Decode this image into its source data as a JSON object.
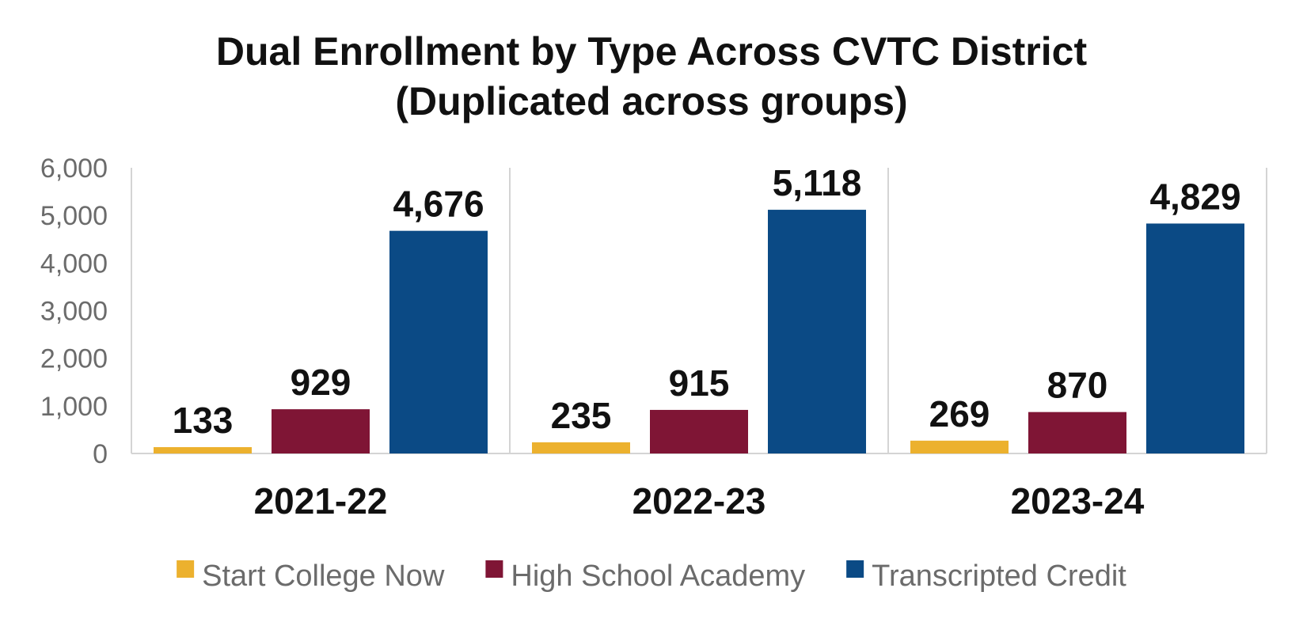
{
  "chart_data": {
    "type": "bar",
    "title_lines": [
      "Dual Enrollment by Type Across CVTC District",
      "(Duplicated across groups)"
    ],
    "categories": [
      "2021-22",
      "2022-23",
      "2023-24"
    ],
    "series": [
      {
        "name": "Start College Now",
        "color": "#ecb12e",
        "values": [
          133,
          235,
          269
        ],
        "labels": [
          "133",
          "235",
          "269"
        ]
      },
      {
        "name": "High School Academy",
        "color": "#7f1535",
        "values": [
          929,
          915,
          870
        ],
        "labels": [
          "929",
          "915",
          "870"
        ]
      },
      {
        "name": "Transcripted Credit",
        "color": "#0b4a85",
        "values": [
          4676,
          5118,
          4829
        ],
        "labels": [
          "4,676",
          "5,118",
          "4,829"
        ]
      }
    ],
    "y_ticks": [
      "0",
      "1,000",
      "2,000",
      "3,000",
      "4,000",
      "5,000",
      "6,000"
    ],
    "ylim": [
      0,
      6000
    ],
    "xlabel": "",
    "ylabel": "",
    "legend_position": "bottom",
    "grid": false,
    "category_separators": true
  }
}
